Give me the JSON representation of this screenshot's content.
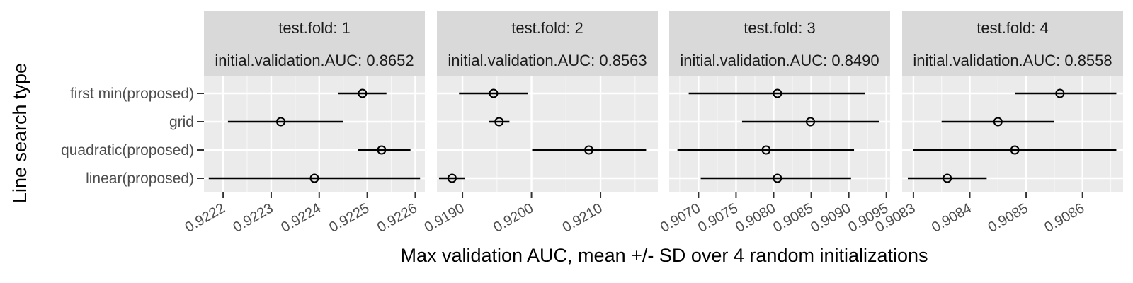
{
  "chart_data": {
    "type": "errorbar-facet",
    "xlabel": "Max validation AUC, mean +/- SD over 4 random initializations",
    "ylabel": "Line search type",
    "categories": [
      "first min(proposed)",
      "grid",
      "quadratic(proposed)",
      "linear(proposed)"
    ],
    "grid": true,
    "facets": [
      {
        "strip_line1": "test.fold: 1",
        "strip_line2": "initial.validation.AUC: 0.8652",
        "xlim": [
          0.92216,
          0.92262
        ],
        "xticks": [
          {
            "value": 0.9222,
            "label": "0.9222"
          },
          {
            "value": 0.9223,
            "label": "0.9223"
          },
          {
            "value": 0.9224,
            "label": "0.9224"
          },
          {
            "value": 0.9225,
            "label": "0.9225"
          },
          {
            "value": 0.9226,
            "label": "0.9226"
          }
        ],
        "points": [
          {
            "category": "first min(proposed)",
            "mean": 0.92249,
            "lo": 0.92244,
            "hi": 0.92254
          },
          {
            "category": "grid",
            "mean": 0.92232,
            "lo": 0.92221,
            "hi": 0.92245
          },
          {
            "category": "quadratic(proposed)",
            "mean": 0.92253,
            "lo": 0.92248,
            "hi": 0.92259
          },
          {
            "category": "linear(proposed)",
            "mean": 0.92239,
            "lo": 0.92217,
            "hi": 0.92261
          }
        ]
      },
      {
        "strip_line1": "test.fold: 2",
        "strip_line2": "initial.validation.AUC: 0.8563",
        "xlim": [
          0.91863,
          0.92183
        ],
        "xticks": [
          {
            "value": 0.919,
            "label": "0.9190"
          },
          {
            "value": 0.92,
            "label": "0.9200"
          },
          {
            "value": 0.921,
            "label": "0.9210"
          }
        ],
        "points": [
          {
            "category": "first min(proposed)",
            "mean": 0.91945,
            "lo": 0.91895,
            "hi": 0.91995
          },
          {
            "category": "grid",
            "mean": 0.91953,
            "lo": 0.91938,
            "hi": 0.91968
          },
          {
            "category": "quadratic(proposed)",
            "mean": 0.92083,
            "lo": 0.92001,
            "hi": 0.92166
          },
          {
            "category": "linear(proposed)",
            "mean": 0.91885,
            "lo": 0.91866,
            "hi": 0.91904
          }
        ]
      },
      {
        "strip_line1": "test.fold: 3",
        "strip_line2": "initial.validation.AUC: 0.8490",
        "xlim": [
          0.90661,
          0.90955
        ],
        "xticks": [
          {
            "value": 0.907,
            "label": "0.9070"
          },
          {
            "value": 0.9075,
            "label": "0.9075"
          },
          {
            "value": 0.908,
            "label": "0.9080"
          },
          {
            "value": 0.9085,
            "label": "0.9085"
          },
          {
            "value": 0.909,
            "label": "0.9090"
          },
          {
            "value": 0.9095,
            "label": "0.9095"
          }
        ],
        "points": [
          {
            "category": "first min(proposed)",
            "mean": 0.90805,
            "lo": 0.90687,
            "hi": 0.90922
          },
          {
            "category": "grid",
            "mean": 0.90849,
            "lo": 0.90758,
            "hi": 0.9094
          },
          {
            "category": "quadratic(proposed)",
            "mean": 0.9079,
            "lo": 0.90672,
            "hi": 0.90907
          },
          {
            "category": "linear(proposed)",
            "mean": 0.90805,
            "lo": 0.90703,
            "hi": 0.90903
          }
        ]
      },
      {
        "strip_line1": "test.fold: 4",
        "strip_line2": "initial.validation.AUC: 0.8558",
        "xlim": [
          0.90828,
          0.908672
        ],
        "xticks": [
          {
            "value": 0.9083,
            "label": "0.9083"
          },
          {
            "value": 0.9084,
            "label": "0.9084"
          },
          {
            "value": 0.9085,
            "label": "0.9085"
          },
          {
            "value": 0.9086,
            "label": "0.9086"
          }
        ],
        "points": [
          {
            "category": "first min(proposed)",
            "mean": 0.90856,
            "lo": 0.90848,
            "hi": 0.90866
          },
          {
            "category": "grid",
            "mean": 0.90845,
            "lo": 0.90835,
            "hi": 0.90855
          },
          {
            "category": "quadratic(proposed)",
            "mean": 0.90848,
            "lo": 0.9083,
            "hi": 0.90866
          },
          {
            "category": "linear(proposed)",
            "mean": 0.90836,
            "lo": 0.90829,
            "hi": 0.90843
          }
        ]
      }
    ]
  }
}
